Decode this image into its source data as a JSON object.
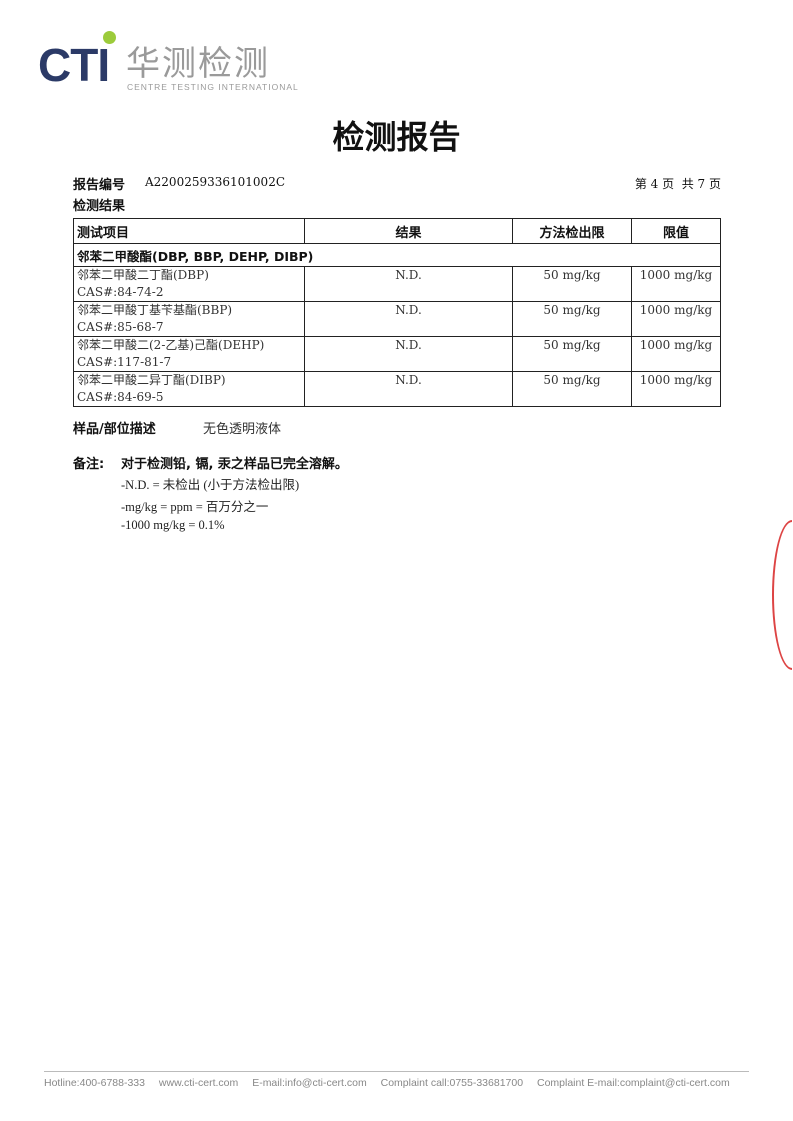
{
  "logo": {
    "mark": "CTI",
    "cn": "华测检测",
    "en": "CENTRE TESTING INTERNATIONAL",
    "accent": "#9ccb3b",
    "brand": "#2b3a67"
  },
  "title": "检测报告",
  "report": {
    "number_label": "报告编号",
    "number": "A2200259336101002C",
    "page": "第 4 页  共 7 页",
    "section": "检测结果"
  },
  "table": {
    "headers": [
      "测试项目",
      "结果",
      "方法检出限",
      "限值"
    ],
    "group": "邻苯二甲酸酯(DBP, BBP, DEHP, DIBP)",
    "rows": [
      {
        "name": "邻苯二甲酸二丁酯(DBP)",
        "cas": "CAS#:84-74-2",
        "result": "N.D.",
        "mdl": "50 mg/kg",
        "limit": "1000 mg/kg"
      },
      {
        "name": "邻苯二甲酸丁基苄基酯(BBP)",
        "cas": "CAS#:85-68-7",
        "result": "N.D.",
        "mdl": "50 mg/kg",
        "limit": "1000 mg/kg"
      },
      {
        "name": "邻苯二甲酸二(2-乙基)己酯(DEHP)",
        "cas": "CAS#:117-81-7",
        "result": "N.D.",
        "mdl": "50 mg/kg",
        "limit": "1000 mg/kg"
      },
      {
        "name": "邻苯二甲酸二异丁酯(DIBP)",
        "cas": "CAS#:84-69-5",
        "result": "N.D.",
        "mdl": "50 mg/kg",
        "limit": "1000 mg/kg"
      }
    ]
  },
  "sample": {
    "label": "样品/部位描述",
    "value": "无色透明液体"
  },
  "remarks": {
    "label": "备注:",
    "headline": "对于检测铅, 镉, 汞之样品已完全溶解。",
    "lines": [
      "-N.D. = 未检出 (小于方法检出限)",
      "-mg/kg = ppm = 百万分之一",
      "-1000 mg/kg = 0.1%"
    ]
  },
  "footer": [
    "Hotline:400-6788-333",
    "www.cti-cert.com",
    "E-mail:info@cti-cert.com",
    "Complaint call:0755-33681700",
    "Complaint E-mail:complaint@cti-cert.com"
  ]
}
